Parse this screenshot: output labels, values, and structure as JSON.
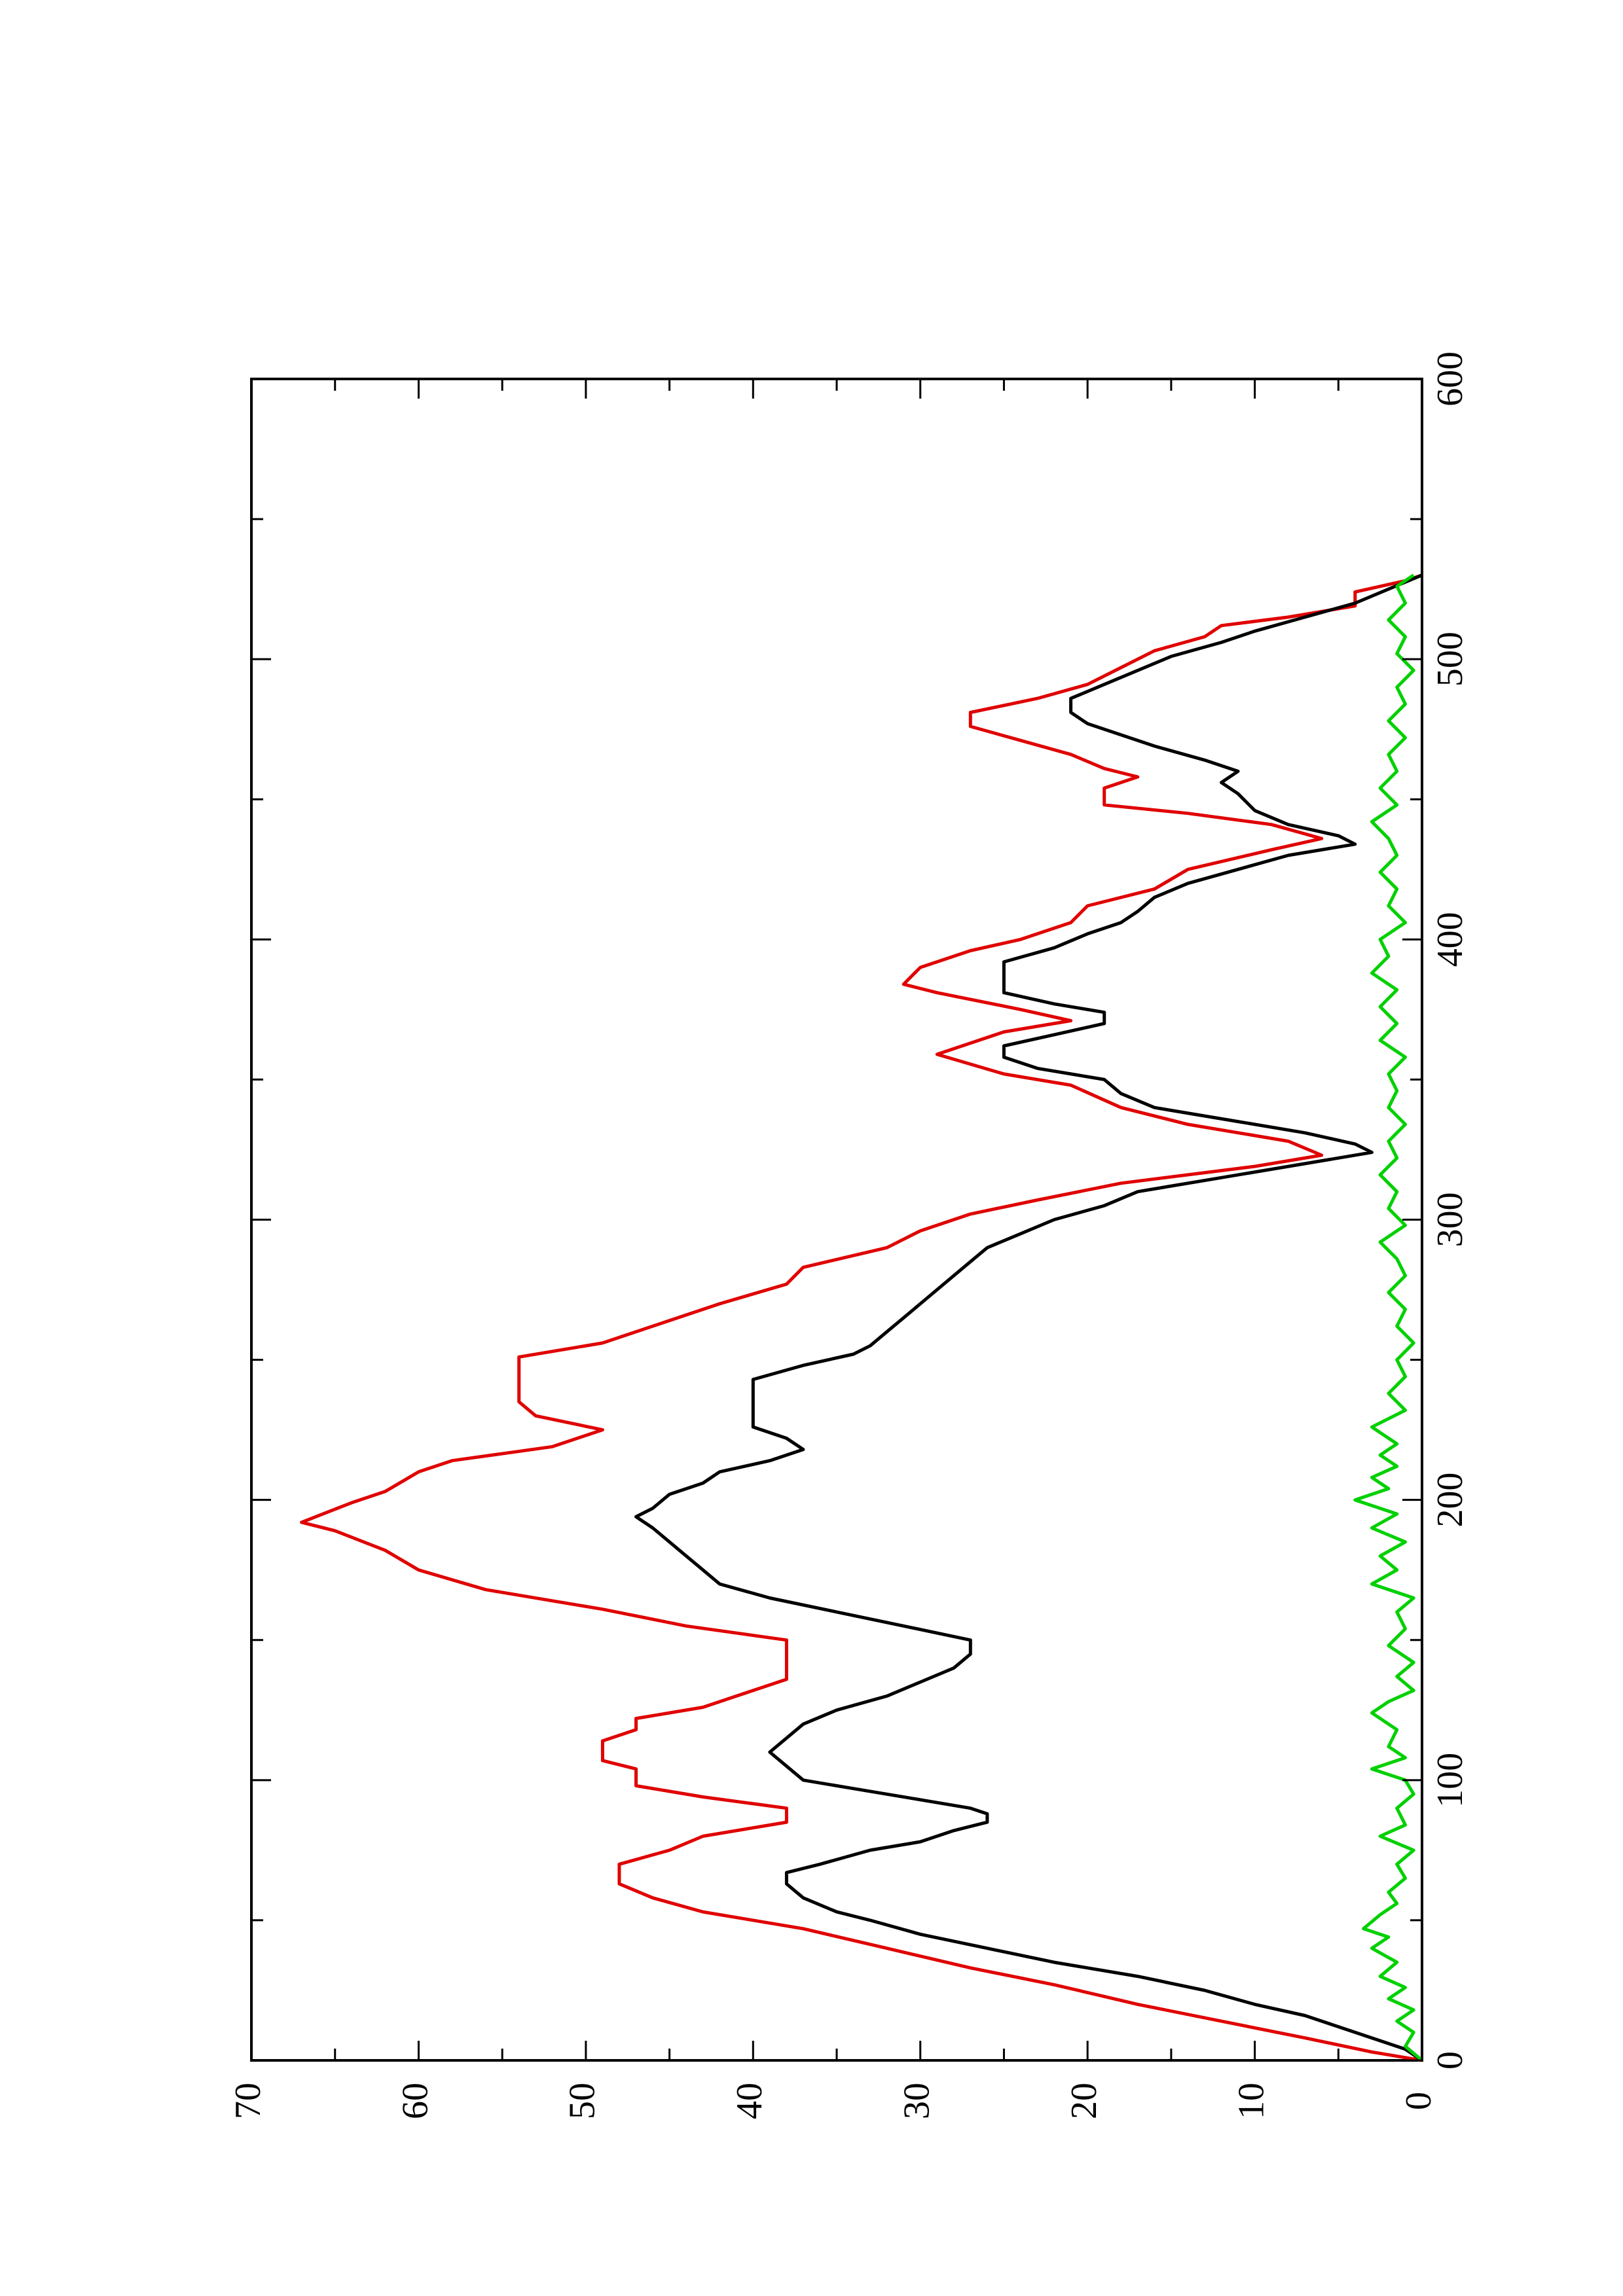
{
  "chart_data": {
    "type": "line",
    "orientation": "rotated 90 degrees counter-clockwise",
    "title": "",
    "xlabel": "",
    "ylabel": "",
    "xlim": [
      0,
      600
    ],
    "ylim": [
      0,
      70
    ],
    "x_ticks": [
      "0",
      "100",
      "200",
      "300",
      "400",
      "500",
      "600"
    ],
    "y_ticks": [
      "0",
      "10",
      "20",
      "30",
      "40",
      "50",
      "60",
      "70"
    ],
    "legend": "none",
    "grid": false,
    "series": [
      {
        "color": "#e00000",
        "style": "step",
        "points": [
          [
            0,
            0
          ],
          [
            3,
            3
          ],
          [
            8,
            7
          ],
          [
            14,
            12
          ],
          [
            20,
            17
          ],
          [
            27,
            22
          ],
          [
            33,
            27
          ],
          [
            40,
            32
          ],
          [
            47,
            37
          ],
          [
            53,
            43
          ],
          [
            58,
            46
          ],
          [
            63,
            48
          ],
          [
            70,
            48
          ],
          [
            75,
            45
          ],
          [
            80,
            43
          ],
          [
            85,
            38
          ],
          [
            90,
            38
          ],
          [
            94,
            43
          ],
          [
            98,
            47
          ],
          [
            104,
            47
          ],
          [
            107,
            49
          ],
          [
            114,
            49
          ],
          [
            118,
            47
          ],
          [
            122,
            47
          ],
          [
            126,
            43
          ],
          [
            130,
            41
          ],
          [
            136,
            38
          ],
          [
            150,
            38
          ],
          [
            155,
            44
          ],
          [
            161,
            49
          ],
          [
            168,
            56
          ],
          [
            175,
            60
          ],
          [
            182,
            62
          ],
          [
            189,
            65
          ],
          [
            192,
            67
          ],
          [
            199,
            64
          ],
          [
            203,
            62
          ],
          [
            210,
            60
          ],
          [
            214,
            58
          ],
          [
            219,
            52
          ],
          [
            225,
            49
          ],
          [
            230,
            53
          ],
          [
            235,
            54
          ],
          [
            251,
            54
          ],
          [
            256,
            49
          ],
          [
            264,
            45
          ],
          [
            270,
            42
          ],
          [
            277,
            38
          ],
          [
            283,
            37
          ],
          [
            290,
            32
          ],
          [
            296,
            30
          ],
          [
            302,
            27
          ],
          [
            307,
            23
          ],
          [
            313,
            18
          ],
          [
            319,
            10
          ],
          [
            323,
            6
          ],
          [
            328,
            8
          ],
          [
            334,
            14
          ],
          [
            340,
            18
          ],
          [
            348,
            21
          ],
          [
            352,
            25
          ],
          [
            359,
            29
          ],
          [
            363,
            27
          ],
          [
            367,
            25
          ],
          [
            371,
            21
          ],
          [
            375,
            24
          ],
          [
            381,
            29
          ],
          [
            384,
            31
          ],
          [
            390,
            30
          ],
          [
            396,
            27
          ],
          [
            400,
            24
          ],
          [
            406,
            21
          ],
          [
            412,
            20
          ],
          [
            418,
            16
          ],
          [
            425,
            14
          ],
          [
            432,
            9
          ],
          [
            436,
            6
          ],
          [
            441,
            9
          ],
          [
            445,
            14
          ],
          [
            448,
            19
          ],
          [
            454,
            19
          ],
          [
            458,
            17
          ],
          [
            461,
            19
          ],
          [
            466,
            21
          ],
          [
            471,
            24
          ],
          [
            476,
            27
          ],
          [
            481,
            27
          ],
          [
            486,
            23
          ],
          [
            491,
            20
          ],
          [
            497,
            18
          ],
          [
            503,
            16
          ],
          [
            508,
            13
          ],
          [
            512,
            12
          ],
          [
            515,
            8
          ],
          [
            519,
            4
          ],
          [
            524,
            4
          ],
          [
            528,
            1
          ],
          [
            530,
            0
          ]
        ]
      },
      {
        "color": "#000000",
        "style": "line",
        "points": [
          [
            0,
            0
          ],
          [
            4,
            1
          ],
          [
            8,
            3
          ],
          [
            12,
            5
          ],
          [
            16,
            7
          ],
          [
            20,
            10
          ],
          [
            25,
            13
          ],
          [
            30,
            17
          ],
          [
            35,
            22
          ],
          [
            40,
            26
          ],
          [
            45,
            30
          ],
          [
            50,
            33
          ],
          [
            53,
            35
          ],
          [
            58,
            37
          ],
          [
            63,
            38
          ],
          [
            67,
            38
          ],
          [
            70,
            36
          ],
          [
            75,
            33
          ],
          [
            78,
            30
          ],
          [
            82,
            28
          ],
          [
            85,
            26
          ],
          [
            88,
            26
          ],
          [
            90,
            27
          ],
          [
            93,
            30
          ],
          [
            97,
            34
          ],
          [
            100,
            37
          ],
          [
            105,
            38
          ],
          [
            110,
            39
          ],
          [
            115,
            38
          ],
          [
            120,
            37
          ],
          [
            125,
            35
          ],
          [
            130,
            32
          ],
          [
            135,
            30
          ],
          [
            140,
            28
          ],
          [
            145,
            27
          ],
          [
            150,
            27
          ],
          [
            155,
            31
          ],
          [
            160,
            35
          ],
          [
            165,
            39
          ],
          [
            170,
            42
          ],
          [
            175,
            43
          ],
          [
            180,
            44
          ],
          [
            185,
            45
          ],
          [
            190,
            46
          ],
          [
            194,
            47
          ],
          [
            197,
            46
          ],
          [
            202,
            45
          ],
          [
            206,
            43
          ],
          [
            210,
            42
          ],
          [
            214,
            39
          ],
          [
            218,
            37
          ],
          [
            222,
            38
          ],
          [
            226,
            40
          ],
          [
            232,
            40
          ],
          [
            238,
            40
          ],
          [
            243,
            40
          ],
          [
            248,
            37
          ],
          [
            252,
            34
          ],
          [
            255,
            33
          ],
          [
            260,
            32
          ],
          [
            265,
            31
          ],
          [
            270,
            30
          ],
          [
            275,
            29
          ],
          [
            280,
            28
          ],
          [
            285,
            27
          ],
          [
            290,
            26
          ],
          [
            295,
            24
          ],
          [
            300,
            22
          ],
          [
            305,
            19
          ],
          [
            310,
            17
          ],
          [
            315,
            12
          ],
          [
            320,
            7
          ],
          [
            324,
            3
          ],
          [
            327,
            4
          ],
          [
            331,
            7
          ],
          [
            335,
            11
          ],
          [
            340,
            16
          ],
          [
            345,
            18
          ],
          [
            350,
            19
          ],
          [
            354,
            23
          ],
          [
            358,
            25
          ],
          [
            362,
            25
          ],
          [
            366,
            22
          ],
          [
            370,
            19
          ],
          [
            374,
            19
          ],
          [
            377,
            22
          ],
          [
            381,
            25
          ],
          [
            386,
            25
          ],
          [
            392,
            25
          ],
          [
            397,
            22
          ],
          [
            402,
            20
          ],
          [
            406,
            18
          ],
          [
            410,
            17
          ],
          [
            415,
            16
          ],
          [
            420,
            14
          ],
          [
            425,
            11
          ],
          [
            430,
            8
          ],
          [
            434,
            4
          ],
          [
            437,
            5
          ],
          [
            441,
            8
          ],
          [
            446,
            10
          ],
          [
            452,
            11
          ],
          [
            456,
            12
          ],
          [
            460,
            11
          ],
          [
            464,
            13
          ],
          [
            469,
            16
          ],
          [
            473,
            18
          ],
          [
            477,
            20
          ],
          [
            481,
            21
          ],
          [
            486,
            21
          ],
          [
            491,
            19
          ],
          [
            496,
            17
          ],
          [
            501,
            15
          ],
          [
            506,
            12
          ],
          [
            510,
            10
          ],
          [
            515,
            7
          ],
          [
            520,
            4
          ],
          [
            525,
            2
          ],
          [
            530,
            0
          ]
        ]
      },
      {
        "color": "#00d000",
        "style": "noisy",
        "points": [
          [
            0,
            0
          ],
          [
            5,
            1
          ],
          [
            10,
            0.5
          ],
          [
            14,
            1.5
          ],
          [
            18,
            0.5
          ],
          [
            22,
            2
          ],
          [
            26,
            1
          ],
          [
            30,
            2.5
          ],
          [
            35,
            1.5
          ],
          [
            40,
            3
          ],
          [
            44,
            2
          ],
          [
            47,
            3.5
          ],
          [
            52,
            2.5
          ],
          [
            56,
            1.5
          ],
          [
            60,
            2
          ],
          [
            65,
            1
          ],
          [
            70,
            1.5
          ],
          [
            75,
            0.5
          ],
          [
            80,
            2.5
          ],
          [
            84,
            1
          ],
          [
            90,
            1.5
          ],
          [
            95,
            0.5
          ],
          [
            100,
            1
          ],
          [
            104,
            3
          ],
          [
            108,
            1
          ],
          [
            112,
            2
          ],
          [
            118,
            1.5
          ],
          [
            124,
            3
          ],
          [
            128,
            2
          ],
          [
            132,
            0.5
          ],
          [
            137,
            1.5
          ],
          [
            142,
            0.5
          ],
          [
            148,
            2
          ],
          [
            154,
            1
          ],
          [
            160,
            1.5
          ],
          [
            165,
            0.5
          ],
          [
            170,
            3
          ],
          [
            175,
            1.5
          ],
          [
            180,
            2.5
          ],
          [
            185,
            1
          ],
          [
            190,
            3
          ],
          [
            195,
            1.5
          ],
          [
            200,
            4
          ],
          [
            204,
            2
          ],
          [
            208,
            3
          ],
          [
            212,
            1.5
          ],
          [
            216,
            2.5
          ],
          [
            220,
            1.5
          ],
          [
            226,
            3
          ],
          [
            232,
            1
          ],
          [
            238,
            2
          ],
          [
            244,
            1
          ],
          [
            250,
            1.5
          ],
          [
            256,
            0.5
          ],
          [
            262,
            1.5
          ],
          [
            268,
            1
          ],
          [
            274,
            2
          ],
          [
            280,
            1
          ],
          [
            286,
            1.5
          ],
          [
            292,
            2.5
          ],
          [
            298,
            1
          ],
          [
            304,
            2
          ],
          [
            310,
            1.5
          ],
          [
            316,
            2.5
          ],
          [
            322,
            1.5
          ],
          [
            328,
            2
          ],
          [
            334,
            1
          ],
          [
            340,
            2
          ],
          [
            346,
            1.5
          ],
          [
            352,
            2
          ],
          [
            358,
            1
          ],
          [
            364,
            2.5
          ],
          [
            370,
            1.5
          ],
          [
            376,
            2.5
          ],
          [
            382,
            1.5
          ],
          [
            388,
            3
          ],
          [
            394,
            2
          ],
          [
            400,
            2.5
          ],
          [
            406,
            1
          ],
          [
            412,
            2
          ],
          [
            418,
            1.5
          ],
          [
            424,
            2.5
          ],
          [
            430,
            1.5
          ],
          [
            436,
            2
          ],
          [
            442,
            3
          ],
          [
            448,
            1.5
          ],
          [
            454,
            2.5
          ],
          [
            460,
            1.5
          ],
          [
            466,
            2
          ],
          [
            472,
            1
          ],
          [
            478,
            2
          ],
          [
            484,
            1
          ],
          [
            490,
            1.5
          ],
          [
            496,
            0.5
          ],
          [
            502,
            1.5
          ],
          [
            508,
            1
          ],
          [
            514,
            2
          ],
          [
            520,
            1
          ],
          [
            526,
            1.5
          ],
          [
            530,
            0.5
          ]
        ]
      }
    ]
  }
}
